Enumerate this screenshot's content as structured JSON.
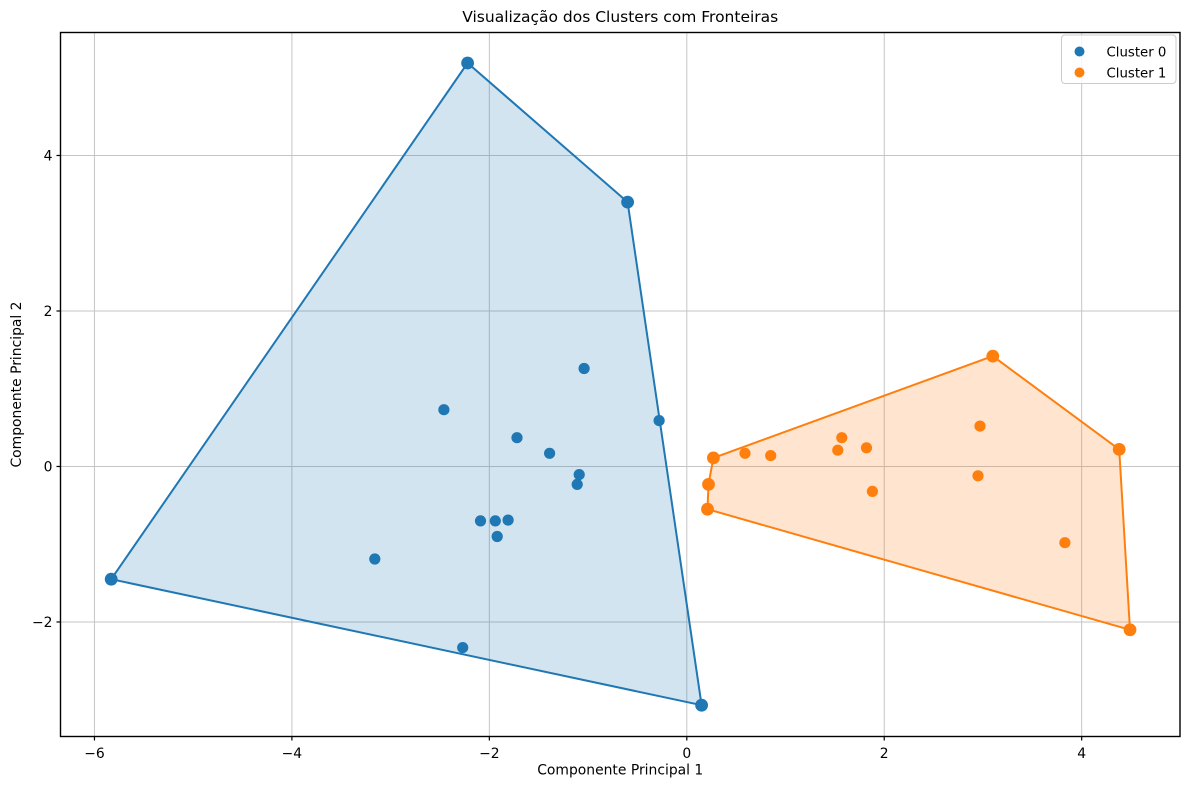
{
  "chart_data": {
    "type": "scatter",
    "title": "Visualização dos Clusters com Fronteiras",
    "xlabel": "Componente Principal 1",
    "ylabel": "Componente Principal 2",
    "xlim": [
      -6.344,
      4.996
    ],
    "ylim": [
      -3.473,
      5.582
    ],
    "xticks": {
      "values": [
        -6,
        -4,
        -2,
        0,
        2,
        4
      ],
      "labels": [
        "−6",
        "−4",
        "−2",
        "0",
        "2",
        "4"
      ]
    },
    "yticks": {
      "values": [
        -2,
        0,
        2,
        4
      ],
      "labels": [
        "−2",
        "0",
        "2",
        "4"
      ]
    },
    "grid": true,
    "legend": {
      "position": "upper right",
      "entries": [
        "Cluster 0",
        "Cluster 1"
      ]
    },
    "series": [
      {
        "name": "Cluster 0",
        "color": "#1f77b4",
        "fill_alpha": 0.2,
        "points": [
          [
            -5.83,
            -1.45
          ],
          [
            -2.22,
            5.19
          ],
          [
            -0.6,
            3.4
          ],
          [
            -1.04,
            1.26
          ],
          [
            -2.46,
            0.73
          ],
          [
            -1.72,
            0.37
          ],
          [
            -0.28,
            0.59
          ],
          [
            -1.39,
            0.17
          ],
          [
            -1.09,
            -0.105
          ],
          [
            -1.11,
            -0.23
          ],
          [
            -2.09,
            -0.7
          ],
          [
            -1.94,
            -0.7
          ],
          [
            -1.81,
            -0.69
          ],
          [
            -1.92,
            -0.9
          ],
          [
            -3.16,
            -1.19
          ],
          [
            -2.27,
            -2.33
          ],
          [
            0.15,
            -3.07
          ]
        ]
      },
      {
        "name": "Cluster 1",
        "color": "#ff7f0e",
        "fill_alpha": 0.2,
        "points": [
          [
            0.27,
            0.11
          ],
          [
            0.22,
            -0.23
          ],
          [
            0.21,
            -0.55
          ],
          [
            0.59,
            0.17
          ],
          [
            0.85,
            0.14
          ],
          [
            1.57,
            0.37
          ],
          [
            1.53,
            0.21
          ],
          [
            1.82,
            0.24
          ],
          [
            1.88,
            -0.32
          ],
          [
            2.97,
            0.52
          ],
          [
            2.95,
            -0.12
          ],
          [
            3.1,
            1.42
          ],
          [
            3.83,
            -0.98
          ],
          [
            4.38,
            0.22
          ],
          [
            4.49,
            -2.1
          ]
        ]
      }
    ],
    "style": {
      "grid_color": "#c5c5c5",
      "spine_color": "#000000",
      "legend_border": "#cccccc",
      "background": "#ffffff"
    }
  }
}
